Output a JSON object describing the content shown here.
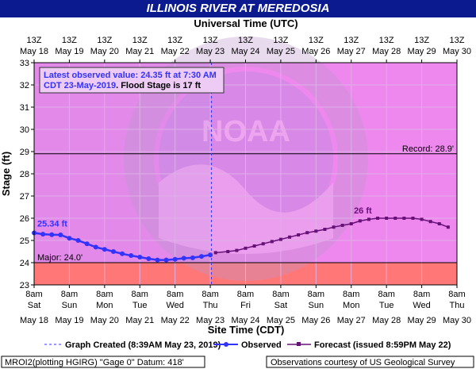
{
  "chart_data": {
    "type": "line",
    "title": "ILLINOIS RIVER AT MEREDOSIA",
    "top_axis_title": "Universal Time (UTC)",
    "top_tick_hour": "13Z",
    "top_tick_dates": [
      "May 18",
      "May 19",
      "May 20",
      "May 21",
      "May 22",
      "May 23",
      "May 24",
      "May 25",
      "May 26",
      "May 27",
      "May 28",
      "May 29",
      "May 30"
    ],
    "xlabel": "Site Time (CDT)",
    "bottom_tick_hour": "8am",
    "bottom_tick_days": [
      "Sat",
      "Sun",
      "Mon",
      "Tue",
      "Wed",
      "Thu",
      "Fri",
      "Sat",
      "Sun",
      "Mon",
      "Tue",
      "Wed",
      "Thu"
    ],
    "bottom_tick_dates": [
      "May 18",
      "May 19",
      "May 20",
      "May 21",
      "May 22",
      "May 23",
      "May 24",
      "May 25",
      "May 26",
      "May 27",
      "May 28",
      "May 29",
      "May 30"
    ],
    "ylabel": "Stage (ft)",
    "ylim": [
      23,
      33
    ],
    "yticks": [
      23,
      24,
      25,
      26,
      27,
      28,
      29,
      30,
      31,
      32,
      33
    ],
    "xlim_days": [
      0,
      12
    ],
    "record": {
      "value": 28.9,
      "label": "Record: 28.9'"
    },
    "major": {
      "value": 24.0,
      "label": "Major: 24.0'"
    },
    "graph_created_day": 5.03,
    "info_text": "Latest observed value: 24.35 ft at 7:30 AM CDT 23-May-2019",
    "info_flood": ". Flood Stage is 17 ft",
    "max_obs_label": "25.34 ft",
    "crest_label": "26 ft",
    "series": [
      {
        "name": "Observed",
        "color": "#3333ff",
        "x": [
          0,
          0.25,
          0.5,
          0.75,
          1,
          1.25,
          1.5,
          1.75,
          2,
          2.25,
          2.5,
          2.75,
          3,
          3.25,
          3.5,
          3.75,
          4,
          4.25,
          4.5,
          4.75,
          5
        ],
        "y": [
          25.34,
          25.28,
          25.26,
          25.25,
          25.1,
          25.0,
          24.85,
          24.7,
          24.6,
          24.5,
          24.4,
          24.32,
          24.25,
          24.18,
          24.12,
          24.12,
          24.15,
          24.2,
          24.22,
          24.28,
          24.35
        ]
      },
      {
        "name": "Forecast (issued 8:59PM May 22)",
        "color": "#661177",
        "x": [
          5.15,
          5.5,
          5.75,
          6,
          6.25,
          6.5,
          6.75,
          7,
          7.25,
          7.5,
          7.75,
          8,
          8.25,
          8.5,
          8.75,
          9,
          9.25,
          9.5,
          9.75,
          10,
          10.25,
          10.5,
          10.75,
          11,
          11.25,
          11.5,
          11.75
        ],
        "y": [
          24.45,
          24.5,
          24.55,
          24.65,
          24.75,
          24.85,
          24.95,
          25.05,
          25.15,
          25.25,
          25.35,
          25.42,
          25.5,
          25.6,
          25.68,
          25.75,
          25.88,
          25.95,
          26.0,
          26.0,
          26.0,
          26.0,
          26.0,
          25.95,
          25.85,
          25.75,
          25.6
        ]
      }
    ]
  },
  "legend": {
    "created": "Graph Created (8:39AM May 23, 2019)",
    "observed": "Observed",
    "forecast": "Forecast (issued 8:59PM May 22)"
  },
  "footer": {
    "left": "MROI2(plotting HGIRG) \"Gage 0\" Datum: 418'",
    "right": "Observations courtesy of US Geological Survey"
  },
  "watermark": {
    "org": "NATIONAL OCEANIC AND ATMOSPHERIC ADMINISTRATION",
    "dept": "U.S. DEPARTMENT OF COMMERCE",
    "logo": "NOAA"
  },
  "colors": {
    "plot_bg": "#ee88ee",
    "major_band": "#ff7777",
    "title_bg": "#0b1b8f",
    "observed": "#3333ff",
    "forecast": "#661177"
  }
}
